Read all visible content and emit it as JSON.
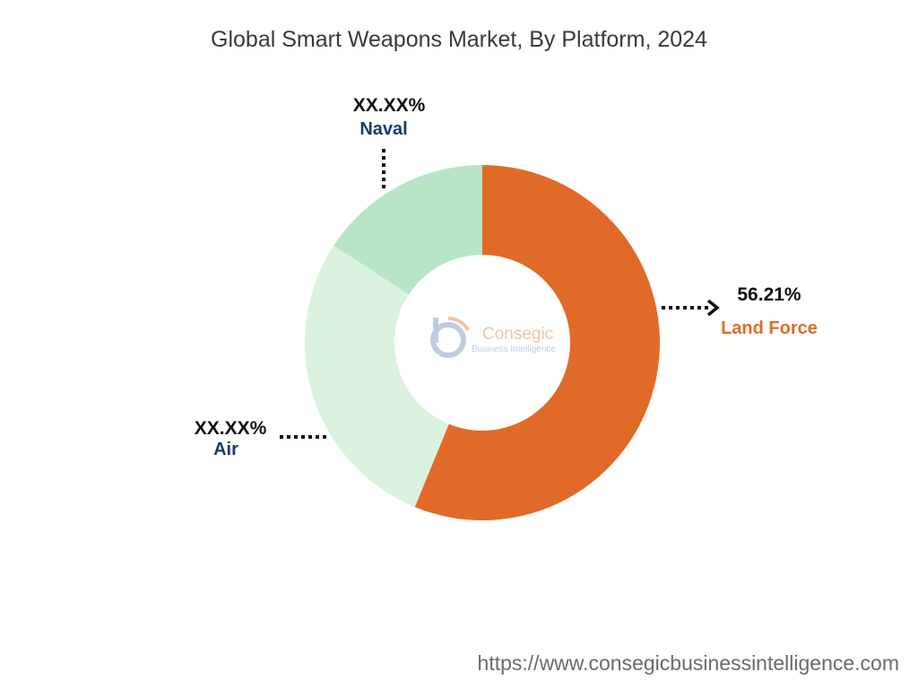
{
  "chart_data": {
    "type": "pie",
    "title": "Global Smart Weapons Market, By Platform, 2024",
    "categories": [
      "Land Force",
      "Air",
      "Naval"
    ],
    "values": [
      56.21,
      28.0,
      15.79
    ],
    "value_labels": [
      "56.21%",
      "XX.XX%",
      "XX.XX%"
    ],
    "colors": [
      "#e26a28",
      "#dbf2df",
      "#b8e5c8"
    ],
    "label_colors": [
      "#e26a28",
      "#1b3a6b",
      "#1b3a6b"
    ],
    "donut": true,
    "legend": "none"
  },
  "watermark": {
    "name": "Consegic",
    "tagline": "Business Intelligence"
  },
  "footer": {
    "url": "https://www.consegicbusinessintelligence.com"
  }
}
